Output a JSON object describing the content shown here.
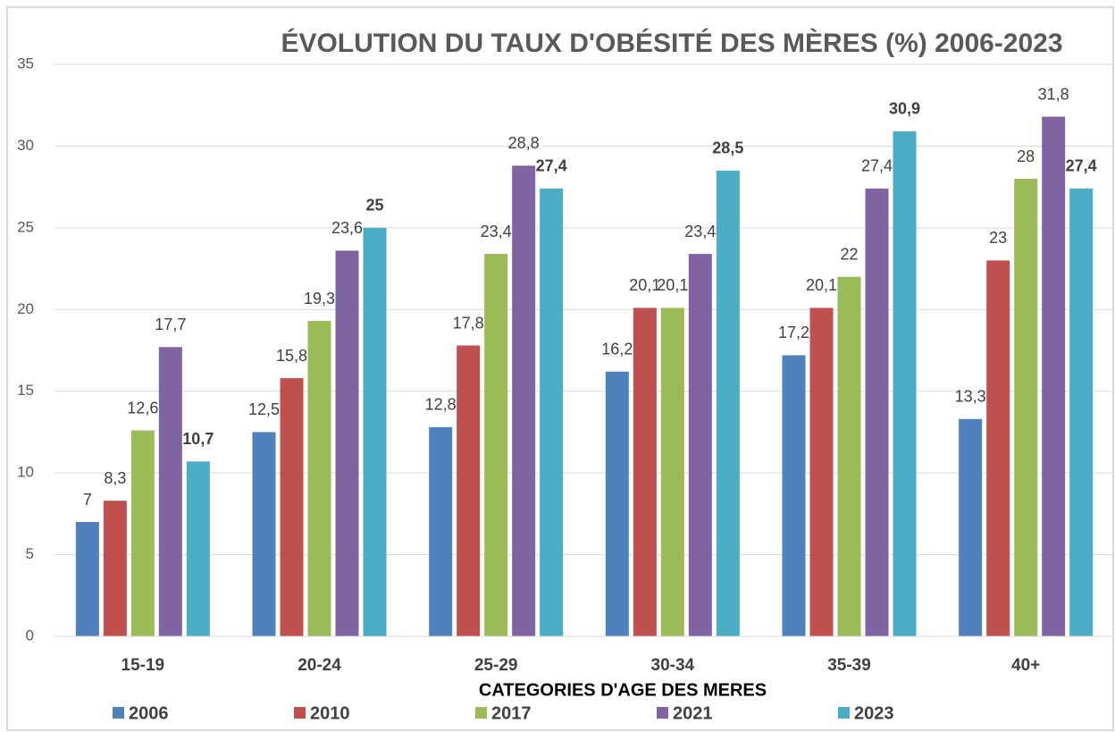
{
  "chart_data": {
    "type": "bar",
    "title": "ÉVOLUTION DU TAUX D'OBÉSITÉ DES MÈRES (%) 2006-2023",
    "x_label": "CATEGORIES D'AGE DES MERES",
    "categories": [
      "15-19",
      "20-24",
      "25-29",
      "30-34",
      "35-39",
      "40+"
    ],
    "series": [
      {
        "name": "2006",
        "color": "#4f81bd",
        "values": [
          7,
          12.5,
          12.8,
          16.2,
          17.2,
          13.3
        ],
        "value_labels": [
          "7",
          "12,5",
          "12,8",
          "16,2",
          "17,2",
          "13,3"
        ]
      },
      {
        "name": "2010",
        "color": "#c0504d",
        "values": [
          8.3,
          15.8,
          17.8,
          20.1,
          20.1,
          23
        ],
        "value_labels": [
          "8,3",
          "15,8",
          "17,8",
          "20,1",
          "20,1",
          "23"
        ]
      },
      {
        "name": "2017",
        "color": "#9bbb59",
        "values": [
          12.6,
          19.3,
          23.4,
          20.1,
          22,
          28
        ],
        "value_labels": [
          "12,6",
          "19,3",
          "23,4",
          "20,1",
          "22",
          "28"
        ]
      },
      {
        "name": "2021",
        "color": "#8064a2",
        "values": [
          17.7,
          23.6,
          28.8,
          23.4,
          27.4,
          31.8
        ],
        "value_labels": [
          "17,7",
          "23,6",
          "28,8",
          "23,4",
          "27,4",
          "31,8"
        ]
      },
      {
        "name": "2023",
        "color": "#4bacc6",
        "values": [
          10.7,
          25,
          27.4,
          28.5,
          30.9,
          27.4
        ],
        "value_labels": [
          "10,7",
          "25",
          "27,4",
          "28,5",
          "30,9",
          "27,4"
        ],
        "label_bold": true
      }
    ],
    "ylim": [
      0,
      35
    ],
    "yticks": [
      0,
      5,
      10,
      15,
      20,
      25,
      30,
      35
    ],
    "grid": true,
    "legend": "bottom"
  }
}
